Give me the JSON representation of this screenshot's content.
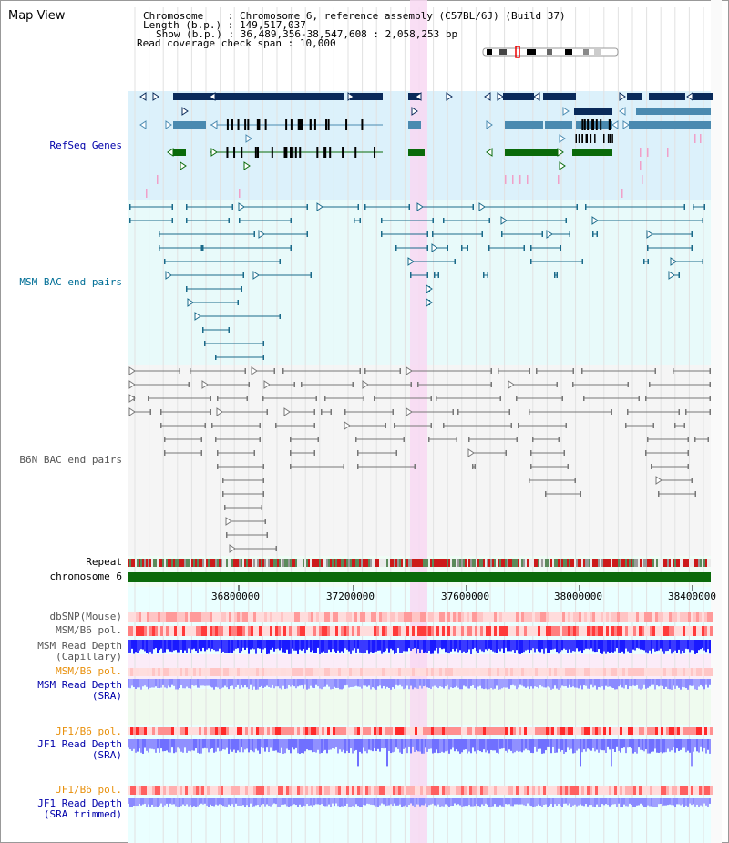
{
  "title": "Map View",
  "info": {
    "chromosome_label": "Chromosome",
    "chromosome_value": "Chromosome 6, reference assembly (C57BL/6J) (Build 37)",
    "length_label": "Length (b.p.)",
    "length_value": "149,517,037",
    "show_label": "Show (b.p.)",
    "show_value": "36,489,356-38,547,608 : 2,058,253 bp",
    "read_cov_label": "Read coverage check span",
    "read_cov_value": "10,000"
  },
  "tracks": {
    "refseq": "RefSeq Genes",
    "msm_bac": "MSM BAC end pairs",
    "b6n_bac": "B6N BAC end pairs",
    "repeat": "Repeat",
    "chromosome": "chromosome 6",
    "dbsnp": "dbSNP(Mouse)",
    "msm_b6_pol": "MSM/B6 pol.",
    "msm_read_cap_1": "MSM Read Depth",
    "msm_read_cap_2": "(Capillary)",
    "msm_b6_pol2": "MSM/B6 pol.",
    "msm_read_sra_1": "MSM Read Depth",
    "msm_read_sra_2": "(SRA)",
    "jf1_b6_pol": "JF1/B6 pol.",
    "jf1_read_sra_1": "JF1 Read Depth",
    "jf1_read_sra_2": "(SRA)",
    "jf1_b6_pol2": "JF1/B6 pol.",
    "jf1_read_trim_1": "JF1 Read Depth",
    "jf1_read_trim_2": "(SRA trimmed)"
  },
  "ruler": {
    "ticks": [
      "36800000",
      "37200000",
      "37600000",
      "38000000",
      "38400000"
    ]
  },
  "colors": {
    "refseq_label": "#0000aa",
    "msm_label": "#006e96",
    "b6n_label": "#555555",
    "pol_label": "#e8900c",
    "depth_label": "#0000aa",
    "refseq_bg": "#dcf1fb",
    "msm_bg": "#e8fafa",
    "b6n_bg": "#f5f5f5",
    "highlight": "#f8d8f2",
    "gene_dark": "#0a2a5a",
    "gene_mid": "#4a8ab0",
    "gene_green": "#0a6a0a"
  }
}
